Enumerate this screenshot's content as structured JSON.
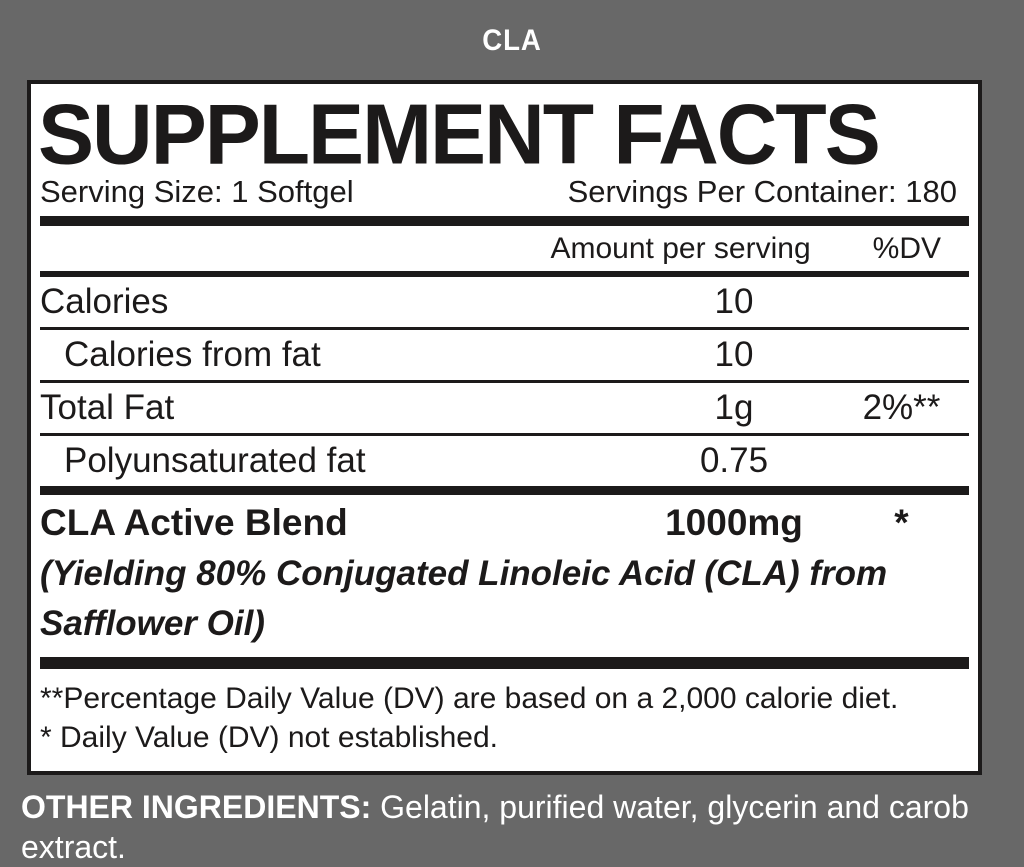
{
  "page": {
    "background": "#686868",
    "title": "CLA"
  },
  "panel": {
    "title": "SUPPLEMENT FACTS",
    "serving_size": "Serving Size: 1 Softgel",
    "servings_per_container": "Servings Per Container: 180",
    "columns": {
      "amount": "Amount per serving",
      "dv": "%DV"
    },
    "rows": [
      {
        "name": "Calories",
        "amount": "10",
        "dv": ""
      },
      {
        "name": "Calories from fat",
        "amount": "10",
        "dv": ""
      },
      {
        "name": "Total Fat",
        "amount": "1g",
        "dv": "2%**"
      },
      {
        "name": "Polyunsaturated fat",
        "amount": "0.75",
        "dv": ""
      }
    ],
    "blend": {
      "name": "CLA Active Blend",
      "amount": "1000mg",
      "dv": "*",
      "description_line1": "(Yielding 80% Conjugated Linoleic Acid (CLA) from",
      "description_line2": "Safflower Oil)"
    },
    "footnotes": [
      "**Percentage Daily Value (DV) are based on a 2,000 calorie diet.",
      "* Daily Value (DV) not established."
    ]
  },
  "other_ingredients": {
    "label": "OTHER INGREDIENTS:",
    "text": " Gelatin, purified water, glycerin and carob extract."
  },
  "colors": {
    "background": "#686868",
    "panel": "#ffffff",
    "ink": "#1c1a1a",
    "title_text": "#ffffff"
  }
}
